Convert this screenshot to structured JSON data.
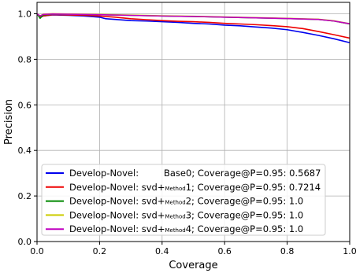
{
  "chart_data": {
    "type": "line",
    "xlabel": "Coverage",
    "ylabel": "Precision",
    "xlim": [
      0.0,
      1.0
    ],
    "ylim": [
      0.0,
      1.05
    ],
    "xticks": [
      "0.0",
      "0.2",
      "0.4",
      "0.6",
      "0.8",
      "1.0"
    ],
    "yticks": [
      "0.0",
      "0.2",
      "0.4",
      "0.6",
      "0.8",
      "1.0"
    ],
    "grid": true,
    "legend_position": "lower-left",
    "series": [
      {
        "name": "Develop-Novel:        Base0; Coverage@P=0.95: 0.5687",
        "label_parts": [
          "Develop-Novel:",
          "Base0; Coverage@P=0.95: 0.5687"
        ],
        "color": "#0000ee",
        "x": [
          0.0,
          0.01,
          0.02,
          0.05,
          0.1,
          0.15,
          0.2,
          0.22,
          0.25,
          0.3,
          0.35,
          0.4,
          0.45,
          0.5,
          0.55,
          0.6,
          0.65,
          0.7,
          0.75,
          0.8,
          0.85,
          0.9,
          0.95,
          1.0
        ],
        "y": [
          1.0,
          0.985,
          0.99,
          0.995,
          0.993,
          0.99,
          0.985,
          0.978,
          0.975,
          0.97,
          0.968,
          0.965,
          0.962,
          0.958,
          0.955,
          0.95,
          0.947,
          0.942,
          0.937,
          0.93,
          0.918,
          0.905,
          0.89,
          0.873
        ]
      },
      {
        "name": "Develop-Novel: svd+Method1; Coverage@P=0.95: 0.7214",
        "label_parts": [
          "Develop-Novel: svd+",
          "Method",
          "1; Coverage@P=0.95: 0.7214"
        ],
        "color": "#ee0000",
        "x": [
          0.0,
          0.01,
          0.02,
          0.05,
          0.1,
          0.15,
          0.2,
          0.25,
          0.3,
          0.35,
          0.4,
          0.45,
          0.5,
          0.55,
          0.6,
          0.65,
          0.7,
          0.75,
          0.8,
          0.85,
          0.9,
          0.95,
          1.0
        ],
        "y": [
          1.0,
          0.985,
          0.99,
          0.996,
          0.995,
          0.993,
          0.99,
          0.985,
          0.978,
          0.974,
          0.97,
          0.967,
          0.965,
          0.962,
          0.958,
          0.955,
          0.952,
          0.948,
          0.943,
          0.935,
          0.922,
          0.908,
          0.893
        ]
      },
      {
        "name": "Develop-Novel: svd+Method2; Coverage@P=0.95: 1.0",
        "label_parts": [
          "Develop-Novel: svd+",
          "Method",
          "2; Coverage@P=0.95: 1.0"
        ],
        "color": "#008800",
        "x": [
          0.0,
          0.01,
          0.02,
          0.05,
          0.1,
          0.2,
          0.3,
          0.4,
          0.5,
          0.6,
          0.7,
          0.8,
          0.9,
          0.95,
          1.0
        ],
        "y": [
          1.0,
          0.98,
          0.995,
          0.998,
          0.998,
          0.996,
          0.993,
          0.99,
          0.988,
          0.985,
          0.982,
          0.979,
          0.975,
          0.968,
          0.955
        ]
      },
      {
        "name": "Develop-Novel: svd+Method3; Coverage@P=0.95: 1.0",
        "label_parts": [
          "Develop-Novel: svd+",
          "Method",
          "3; Coverage@P=0.95: 1.0"
        ],
        "color": "#cccc00",
        "x": [
          0.0,
          0.01,
          0.02,
          0.05,
          0.1,
          0.2,
          0.3,
          0.4,
          0.5,
          0.6,
          0.7,
          0.8,
          0.9,
          0.95,
          1.0
        ],
        "y": [
          1.0,
          0.99,
          0.998,
          1.0,
          0.999,
          0.997,
          0.994,
          0.991,
          0.989,
          0.986,
          0.983,
          0.98,
          0.976,
          0.969,
          0.956
        ]
      },
      {
        "name": "Develop-Novel: svd+Method4; Coverage@P=0.95: 1.0",
        "label_parts": [
          "Develop-Novel: svd+",
          "Method",
          "4; Coverage@P=0.95: 1.0"
        ],
        "color": "#c000c0",
        "x": [
          0.0,
          0.01,
          0.02,
          0.05,
          0.1,
          0.2,
          0.3,
          0.4,
          0.5,
          0.6,
          0.7,
          0.8,
          0.9,
          0.95,
          1.0
        ],
        "y": [
          1.0,
          0.99,
          0.997,
          0.999,
          0.998,
          0.996,
          0.993,
          0.99,
          0.988,
          0.985,
          0.982,
          0.979,
          0.975,
          0.968,
          0.956
        ]
      }
    ]
  }
}
